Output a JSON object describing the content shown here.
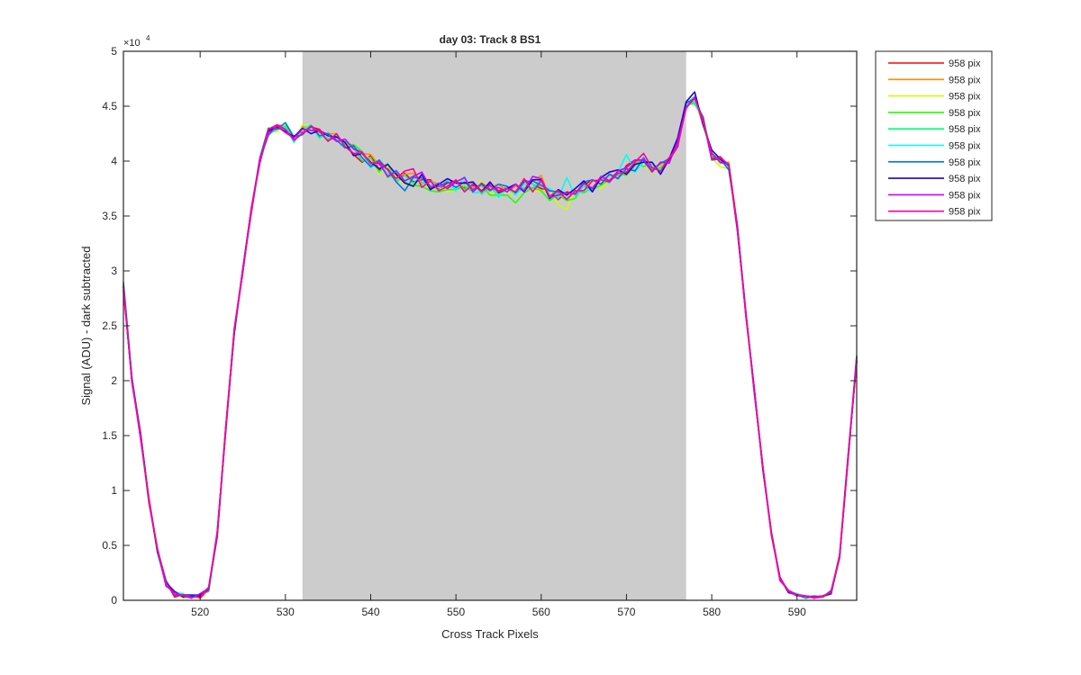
{
  "chart_data": {
    "type": "line",
    "title": "day 03: Track 8  BS1",
    "xlabel": "Cross Track Pixels",
    "ylabel": "Signal (ADU) - dark subtracted",
    "exponent_label": "×10",
    "exponent_power": "4",
    "xlim": [
      511,
      597
    ],
    "ylim": [
      0,
      5
    ],
    "xticks": [
      520,
      530,
      540,
      550,
      560,
      570,
      580,
      590
    ],
    "yticks": [
      0,
      0.5,
      1,
      1.5,
      2,
      2.5,
      3,
      3.5,
      4,
      4.5,
      5
    ],
    "ytick_labels": [
      "0",
      "0.5",
      "1",
      "1.5",
      "2",
      "2.5",
      "3",
      "3.5",
      "4",
      "4.5",
      "5"
    ],
    "shaded_region": {
      "x": [
        532,
        577
      ],
      "color": "#cccccc"
    },
    "grid": false,
    "legend_position": "outside-top-right",
    "x": [
      511,
      512,
      513,
      514,
      515,
      516,
      517,
      518,
      519,
      520,
      521,
      522,
      523,
      524,
      525,
      526,
      527,
      528,
      529,
      530,
      531,
      532,
      533,
      534,
      535,
      536,
      537,
      538,
      539,
      540,
      541,
      542,
      543,
      544,
      545,
      546,
      547,
      548,
      549,
      550,
      551,
      552,
      553,
      554,
      555,
      556,
      557,
      558,
      559,
      560,
      561,
      562,
      563,
      564,
      565,
      566,
      567,
      568,
      569,
      570,
      571,
      572,
      573,
      574,
      575,
      576,
      577,
      578,
      579,
      580,
      581,
      582,
      583,
      584,
      585,
      586,
      587,
      588,
      589,
      590,
      591,
      592,
      593,
      594,
      595,
      596,
      597
    ],
    "base_values": [
      2.85,
      2.0,
      1.5,
      0.9,
      0.45,
      0.15,
      0.06,
      0.04,
      0.03,
      0.04,
      0.1,
      0.6,
      1.55,
      2.45,
      3.0,
      3.55,
      4.0,
      4.25,
      4.3,
      4.3,
      4.2,
      4.28,
      4.3,
      4.25,
      4.22,
      4.2,
      4.15,
      4.1,
      4.05,
      4.0,
      3.95,
      3.9,
      3.87,
      3.85,
      3.84,
      3.82,
      3.8,
      3.78,
      3.78,
      3.78,
      3.77,
      3.77,
      3.76,
      3.75,
      3.74,
      3.74,
      3.74,
      3.75,
      3.77,
      3.8,
      3.7,
      3.68,
      3.68,
      3.72,
      3.75,
      3.78,
      3.81,
      3.84,
      3.87,
      3.91,
      3.95,
      3.98,
      3.95,
      3.95,
      4.0,
      4.15,
      4.5,
      4.55,
      4.35,
      4.05,
      4.0,
      3.95,
      3.4,
      2.6,
      1.9,
      1.2,
      0.6,
      0.2,
      0.08,
      0.05,
      0.03,
      0.03,
      0.03,
      0.07,
      0.4,
      1.3,
      2.2
    ],
    "series": [
      {
        "name": "958 pix",
        "color": "#ff0000",
        "offsets": [
          0.0,
          0.01,
          -0.02,
          0.03,
          -0.01,
          0.02,
          -0.03,
          0.01,
          0.02,
          -0.02,
          0.0,
          -0.01,
          0.03,
          0.02,
          -0.01,
          0.01,
          -0.02,
          0.03,
          0.02,
          -0.04,
          0.03,
          -0.02,
          0.01,
          0.04,
          -0.03,
          0.02,
          0.01,
          -0.04,
          -0.06,
          0.05,
          -0.03,
          0.04,
          -0.06,
          0.04,
          -0.03,
          0.01,
          0.03,
          -0.03,
          0.02,
          0.04,
          -0.02,
          0.01,
          -0.03,
          0.04,
          -0.01,
          0.02,
          -0.03,
          0.08,
          0.02,
          -0.05,
          0.03,
          -0.03,
          0.04,
          -0.02,
          0.03,
          0.05,
          -0.02,
          0.04,
          -0.03,
          0.05,
          0.06,
          0.02,
          -0.04,
          0.03,
          0.01,
          -0.02,
          0.03,
          -0.01,
          0.05,
          -0.02,
          0.04,
          0.01,
          -0.03,
          0.02,
          0.01,
          -0.01,
          0.02,
          0.0,
          -0.01,
          0.01,
          0.0,
          0.01,
          0.0,
          -0.01,
          0.02,
          0.03,
          -0.03
        ]
      },
      {
        "name": "958 pix",
        "color": "#ff8c00",
        "offsets": [
          -0.02,
          0.0,
          0.03,
          -0.02,
          0.02,
          -0.01,
          0.02,
          -0.01,
          0.0,
          0.01,
          -0.02,
          0.03,
          -0.02,
          0.01,
          0.02,
          -0.03,
          0.01,
          -0.02,
          0.03,
          0.02,
          -0.01,
          0.04,
          -0.02,
          0.01,
          0.03,
          0.05,
          -0.02,
          0.03,
          0.02,
          0.06,
          0.01,
          0.05,
          -0.01,
          0.03,
          0.05,
          -0.02,
          0.02,
          0.01,
          -0.03,
          0.03,
          0.02,
          -0.01,
          0.04,
          0.01,
          0.05,
          -0.02,
          0.03,
          0.01,
          0.05,
          0.07,
          -0.03,
          0.01,
          0.02,
          -0.01,
          0.04,
          -0.02,
          0.02,
          0.03,
          0.01,
          -0.02,
          0.03,
          0.04,
          -0.01,
          0.02,
          0.03,
          0.01,
          -0.01,
          0.02,
          -0.03,
          0.03,
          -0.02,
          0.04,
          0.02,
          -0.01,
          0.0,
          0.02,
          -0.01,
          0.01,
          0.0,
          0.01,
          -0.01,
          0.0,
          0.01,
          0.0,
          -0.02,
          0.01,
          0.02
        ]
      },
      {
        "name": "958 pix",
        "color": "#ccff00",
        "offsets": [
          0.01,
          -0.02,
          0.01,
          0.02,
          -0.02,
          0.01,
          0.01,
          -0.02,
          0.01,
          0.0,
          0.02,
          -0.02,
          0.01,
          -0.03,
          0.02,
          0.01,
          -0.01,
          0.02,
          -0.03,
          0.03,
          -0.02,
          0.05,
          0.03,
          -0.03,
          0.01,
          0.02,
          -0.01,
          0.04,
          -0.02,
          0.03,
          -0.07,
          0.05,
          -0.02,
          -0.06,
          -0.07,
          -0.03,
          -0.05,
          -0.02,
          -0.06,
          -0.04,
          0.03,
          -0.05,
          0.06,
          -0.03,
          -0.04,
          -0.01,
          -0.05,
          0.02,
          -0.04,
          -0.07,
          0.04,
          -0.08,
          -0.12,
          0.02,
          -0.03,
          0.05,
          -0.06,
          -0.02,
          0.04,
          -0.03,
          0.02,
          -0.01,
          -0.06,
          0.03,
          -0.02,
          0.04,
          0.01,
          -0.02,
          0.03,
          -0.02,
          -0.05,
          -0.02,
          0.01,
          0.02,
          -0.01,
          0.01,
          -0.02,
          0.01,
          0.01,
          0.0,
          -0.01,
          0.01,
          0.0,
          0.01,
          0.0,
          -0.01,
          0.01
        ]
      },
      {
        "name": "958 pix",
        "color": "#22ff00",
        "offsets": [
          -0.01,
          0.02,
          -0.01,
          -0.02,
          0.01,
          0.02,
          -0.01,
          0.0,
          0.01,
          -0.01,
          0.02,
          0.01,
          -0.02,
          0.02,
          -0.01,
          0.02,
          0.01,
          -0.01,
          -0.01,
          0.02,
          0.01,
          0.02,
          -0.02,
          0.02,
          -0.02,
          0.03,
          0.0,
          0.05,
          0.04,
          -0.03,
          0.06,
          -0.05,
          0.02,
          -0.04,
          -0.06,
          -0.05,
          -0.07,
          -0.06,
          -0.04,
          -0.04,
          0.0,
          -0.05,
          0.02,
          -0.06,
          -0.05,
          -0.05,
          -0.12,
          -0.04,
          -0.01,
          -0.07,
          -0.06,
          0.02,
          -0.04,
          -0.06,
          0.03,
          -0.04,
          -0.03,
          -0.01,
          0.02,
          -0.04,
          0.01,
          0.04,
          -0.03,
          -0.01,
          0.02,
          0.01,
          0.02,
          -0.03,
          0.04,
          0.0,
          0.01,
          0.03,
          -0.02,
          0.01,
          0.02,
          -0.01,
          0.0,
          0.01,
          -0.01,
          0.0,
          0.01,
          0.0,
          0.0,
          -0.01,
          0.01,
          0.02,
          0.01
        ]
      },
      {
        "name": "958 pix",
        "color": "#00ff77",
        "offsets": [
          0.02,
          -0.01,
          0.02,
          0.01,
          -0.02,
          -0.01,
          0.02,
          0.01,
          -0.01,
          0.01,
          -0.01,
          0.02,
          0.02,
          -0.02,
          0.01,
          -0.02,
          0.02,
          0.01,
          0.02,
          -0.02,
          0.02,
          -0.03,
          0.03,
          -0.04,
          0.04,
          -0.02,
          0.03,
          0.02,
          -0.05,
          0.03,
          -0.05,
          0.08,
          -0.06,
          0.02,
          -0.04,
          0.03,
          -0.02,
          0.01,
          -0.02,
          0.03,
          -0.03,
          0.04,
          -0.06,
          0.02,
          -0.06,
          0.01,
          -0.04,
          0.01,
          -0.02,
          0.04,
          -0.05,
          0.03,
          -0.02,
          0.01,
          -0.04,
          -0.02,
          0.03,
          -0.02,
          0.0,
          0.03,
          0.05,
          -0.03,
          0.03,
          -0.04,
          0.02,
          -0.01,
          0.02,
          0.04,
          -0.02,
          0.02,
          0.01,
          -0.02,
          0.02,
          0.01,
          -0.02,
          0.01,
          0.01,
          -0.01,
          0.01,
          0.0,
          0.01,
          -0.01,
          0.01,
          0.0,
          0.01,
          0.01,
          -0.02
        ]
      },
      {
        "name": "958 pix",
        "color": "#00ffee",
        "offsets": [
          0.03,
          0.02,
          -0.01,
          0.0,
          0.02,
          -0.02,
          0.01,
          0.02,
          -0.01,
          0.02,
          0.01,
          -0.02,
          -0.01,
          0.03,
          -0.02,
          0.01,
          0.02,
          -0.02,
          0.01,
          0.01,
          -0.03,
          0.01,
          0.03,
          -0.02,
          -0.01,
          0.03,
          -0.02,
          0.02,
          0.03,
          -0.06,
          0.04,
          -0.02,
          0.05,
          -0.04,
          0.03,
          -0.03,
          0.02,
          -0.02,
          0.04,
          -0.05,
          0.09,
          -0.06,
          -0.04,
          0.06,
          -0.07,
          0.03,
          -0.05,
          0.04,
          0.02,
          -0.03,
          0.05,
          -0.02,
          0.17,
          -0.04,
          0.02,
          -0.06,
          0.04,
          -0.04,
          0.03,
          0.15,
          -0.05,
          0.02,
          0.03,
          -0.06,
          0.03,
          -0.02,
          0.01,
          -0.01,
          0.02,
          -0.03,
          0.02,
          -0.01,
          0.01,
          0.02,
          -0.01,
          0.0,
          0.01,
          -0.01,
          0.0,
          0.01,
          0.0,
          0.0,
          0.01,
          0.0,
          0.01,
          -0.02,
          0.02
        ]
      },
      {
        "name": "958 pix",
        "color": "#0077ee",
        "offsets": [
          0.05,
          0.03,
          0.02,
          -0.01,
          0.01,
          0.03,
          -0.01,
          0.01,
          0.02,
          0.01,
          -0.01,
          0.01,
          0.02,
          -0.01,
          0.02,
          0.01,
          0.03,
          0.05,
          -0.01,
          0.05,
          0.02,
          -0.04,
          0.02,
          -0.02,
          0.03,
          -0.01,
          -0.03,
          0.04,
          -0.02,
          -0.05,
          0.06,
          0.02,
          -0.06,
          -0.12,
          0.01,
          0.03,
          -0.05,
          -0.01,
          0.03,
          -0.02,
          0.04,
          -0.03,
          0.03,
          -0.02,
          0.05,
          0.03,
          -0.03,
          0.06,
          0.05,
          -0.02,
          0.03,
          0.04,
          0.03,
          -0.02,
          0.06,
          0.05,
          -0.02,
          0.04,
          -0.03,
          0.02,
          -0.04,
          0.05,
          -0.04,
          0.03,
          0.02,
          -0.01,
          0.03,
          0.02,
          0.04,
          -0.04,
          0.02,
          -0.03,
          0.02,
          0.03,
          -0.02,
          0.01,
          0.02,
          -0.01,
          0.01,
          0.0,
          -0.01,
          0.01,
          0.0,
          0.02,
          -0.01,
          0.02,
          0.03
        ]
      },
      {
        "name": "958 pix",
        "color": "#2200cc",
        "offsets": [
          0.01,
          -0.01,
          0.03,
          0.01,
          -0.01,
          0.01,
          0.02,
          -0.01,
          0.01,
          0.0,
          0.01,
          -0.02,
          0.01,
          -0.02,
          0.01,
          0.02,
          -0.01,
          0.02,
          0.01,
          -0.03,
          0.02,
          0.02,
          -0.05,
          0.03,
          0.01,
          0.02,
          0.02,
          -0.05,
          0.02,
          -0.01,
          -0.02,
          0.07,
          0.01,
          -0.05,
          -0.07,
          0.06,
          -0.06,
          0.01,
          0.06,
          0.02,
          0.03,
          0.04,
          -0.04,
          0.06,
          -0.03,
          0.01,
          0.05,
          -0.03,
          0.06,
          0.03,
          -0.04,
          0.06,
          0.01,
          0.03,
          0.07,
          -0.06,
          0.04,
          0.06,
          0.05,
          -0.03,
          0.02,
          0.01,
          0.04,
          -0.07,
          0.02,
          0.06,
          0.04,
          0.08,
          -0.02,
          0.05,
          0.02,
          0.01,
          -0.02,
          0.01,
          0.02,
          -0.01,
          0.01,
          0.01,
          -0.01,
          0.0,
          0.01,
          0.0,
          0.01,
          -0.01,
          0.0,
          0.01,
          -0.02
        ]
      },
      {
        "name": "958 pix",
        "color": "#cc00ff",
        "offsets": [
          -0.03,
          0.01,
          -0.02,
          0.02,
          0.01,
          -0.02,
          0.01,
          0.0,
          -0.01,
          0.02,
          0.01,
          0.02,
          -0.01,
          0.02,
          0.01,
          -0.02,
          0.02,
          -0.01,
          0.02,
          -0.04,
          0.01,
          0.01,
          -0.02,
          0.03,
          0.02,
          -0.02,
          0.05,
          0.01,
          0.03,
          -0.02,
          0.03,
          -0.04,
          0.04,
          -0.03,
          0.02,
          0.08,
          -0.04,
          0.02,
          -0.03,
          0.03,
          0.08,
          -0.05,
          0.04,
          -0.01,
          0.02,
          -0.02,
          0.05,
          -0.02,
          0.09,
          0.04,
          -0.03,
          0.01,
          0.03,
          -0.02,
          0.05,
          -0.03,
          0.05,
          -0.02,
          0.04,
          0.03,
          0.06,
          0.03,
          -0.05,
          0.04,
          -0.02,
          0.03,
          -0.02,
          0.03,
          0.0,
          0.02,
          -0.01,
          0.02,
          0.01,
          -0.01,
          0.02,
          0.01,
          -0.01,
          0.01,
          0.0,
          -0.01,
          0.01,
          0.0,
          0.01,
          0.0,
          0.0,
          -0.01,
          0.01
        ]
      },
      {
        "name": "958 pix",
        "color": "#ff0099",
        "offsets": [
          0.02,
          -0.02,
          0.01,
          -0.01,
          0.02,
          0.01,
          -0.02,
          0.01,
          0.0,
          -0.01,
          0.02,
          0.0,
          0.02,
          0.01,
          -0.02,
          0.02,
          -0.01,
          0.04,
          0.03,
          -0.01,
          -0.01,
          -0.03,
          0.02,
          0.02,
          -0.04,
          0.05,
          -0.02,
          -0.03,
          0.02,
          -0.02,
          0.04,
          0.02,
          -0.03,
          0.06,
          0.09,
          -0.06,
          0.02,
          -0.05,
          -0.01,
          0.05,
          -0.05,
          0.02,
          -0.04,
          0.03,
          -0.02,
          0.01,
          -0.02,
          0.09,
          -0.05,
          0.02,
          -0.02,
          0.05,
          -0.03,
          0.01,
          -0.02,
          0.04,
          0.02,
          -0.03,
          0.02,
          -0.01,
          0.04,
          0.09,
          -0.01,
          -0.04,
          0.03,
          -0.02,
          -0.01,
          0.02,
          0.02,
          -0.03,
          0.03,
          0.02,
          -0.01,
          0.02,
          -0.01,
          0.02,
          0.01,
          -0.02,
          0.01,
          0.0,
          0.01,
          -0.01,
          0.0,
          0.01,
          0.01,
          0.0,
          -0.01
        ]
      }
    ]
  }
}
